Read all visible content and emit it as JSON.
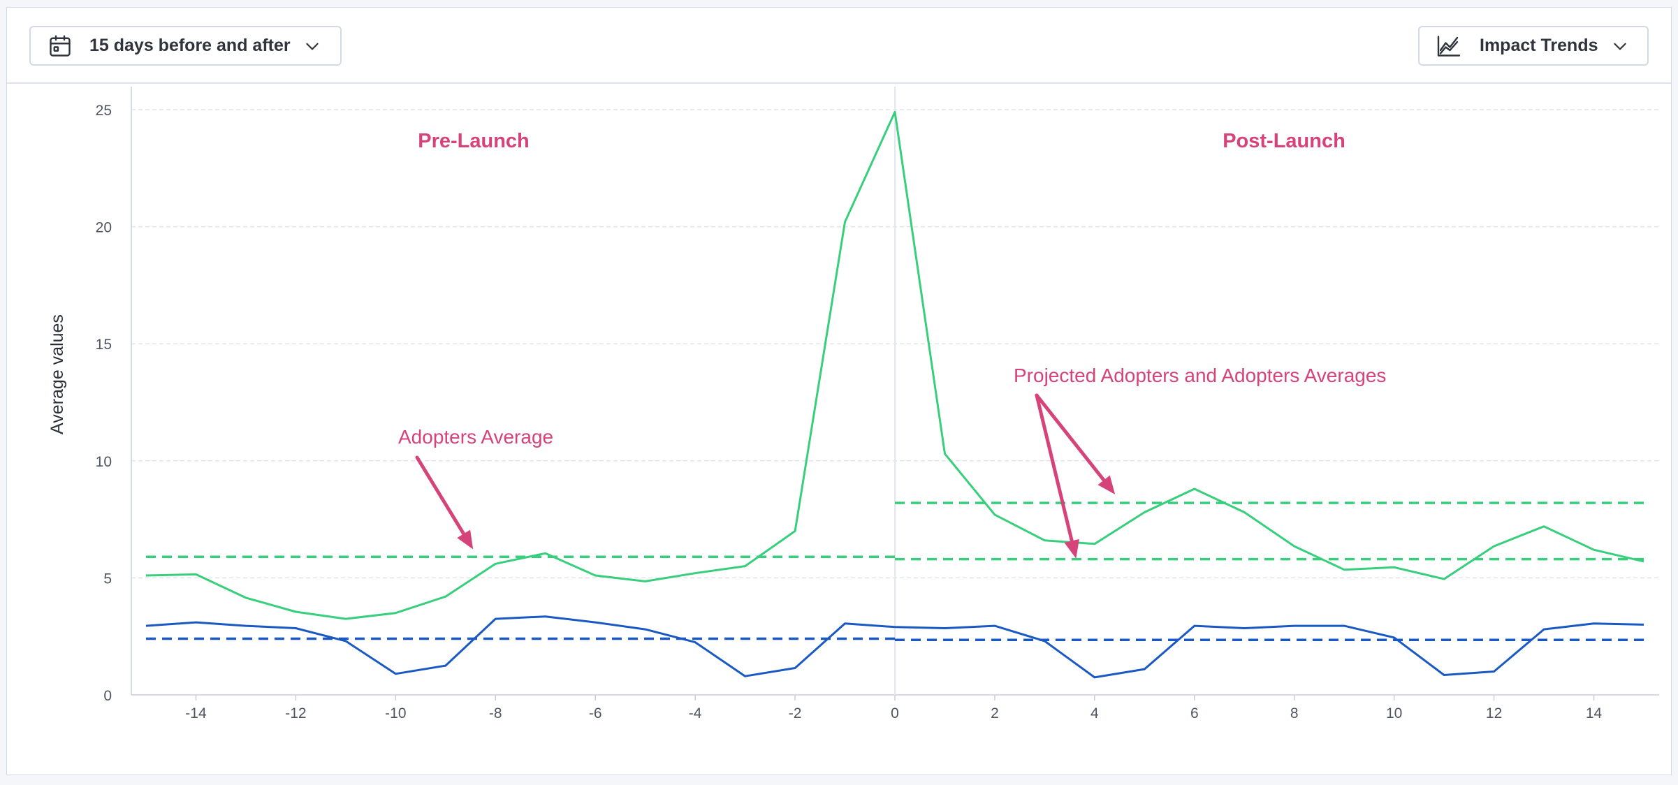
{
  "toolbar": {
    "range_label": "15 days before and after",
    "range_icon": "calendar-icon",
    "view_label": "Impact Trends",
    "view_icon": "line-chart-icon"
  },
  "colors": {
    "adopters": "#38cf7c",
    "baseline": "#1a59c4",
    "annotation": "#d5437a",
    "grid": "#e1e4ea",
    "axis_text": "#4f5560"
  },
  "chart_data": {
    "type": "line",
    "ylabel": "Average values",
    "xlabel": "",
    "xlim": [
      -15,
      15
    ],
    "ylim": [
      0,
      25
    ],
    "x_ticks": [
      -14,
      -12,
      -10,
      -8,
      -6,
      -4,
      -2,
      0,
      2,
      4,
      6,
      8,
      10,
      12,
      14
    ],
    "y_ticks": [
      0,
      5,
      10,
      15,
      20,
      25
    ],
    "grid": "horizontal dashed",
    "x": [
      -15,
      -14,
      -13,
      -12,
      -11,
      -10,
      -9,
      -8,
      -7,
      -6,
      -5,
      -4,
      -3,
      -2,
      -1,
      0,
      1,
      2,
      3,
      4,
      5,
      6,
      7,
      8,
      9,
      10,
      11,
      12,
      13,
      14,
      15
    ],
    "series": [
      {
        "color": "#38cf7c",
        "values": [
          5.1,
          5.15,
          4.15,
          3.55,
          3.25,
          3.5,
          4.2,
          5.6,
          6.05,
          5.1,
          4.85,
          5.2,
          5.5,
          7.0,
          20.2,
          24.9,
          10.3,
          7.7,
          6.6,
          6.45,
          7.8,
          8.8,
          7.8,
          6.35,
          5.35,
          5.45,
          4.95,
          6.35,
          7.2,
          6.2,
          5.7
        ]
      },
      {
        "color": "#1a59c4",
        "values": [
          2.95,
          3.1,
          2.95,
          2.85,
          2.3,
          0.9,
          1.25,
          3.25,
          3.35,
          3.1,
          2.8,
          2.25,
          0.8,
          1.15,
          3.05,
          2.9,
          2.85,
          2.95,
          2.3,
          0.75,
          1.1,
          2.95,
          2.85,
          2.95,
          2.95,
          2.45,
          0.85,
          1.0,
          2.8,
          3.05,
          3.0
        ]
      }
    ],
    "averages": [
      {
        "color": "#38cf7c",
        "x_from": -15,
        "x_to": 0,
        "value": 5.9
      },
      {
        "color": "#38cf7c",
        "x_from": 0,
        "x_to": 15,
        "value": 8.2
      },
      {
        "color": "#38cf7c",
        "x_from": 0,
        "x_to": 15,
        "value": 5.8
      },
      {
        "color": "#1a59c4",
        "x_from": -15,
        "x_to": 0,
        "value": 2.4
      },
      {
        "color": "#1a59c4",
        "x_from": 0,
        "x_to": 15,
        "value": 2.35
      }
    ],
    "divider_x": 0,
    "annotations": {
      "pre_launch": "Pre-Launch",
      "post_launch": "Post-Launch",
      "adopters_average": "Adopters Average",
      "projected": "Projected Adopters and Adopters Averages"
    }
  }
}
